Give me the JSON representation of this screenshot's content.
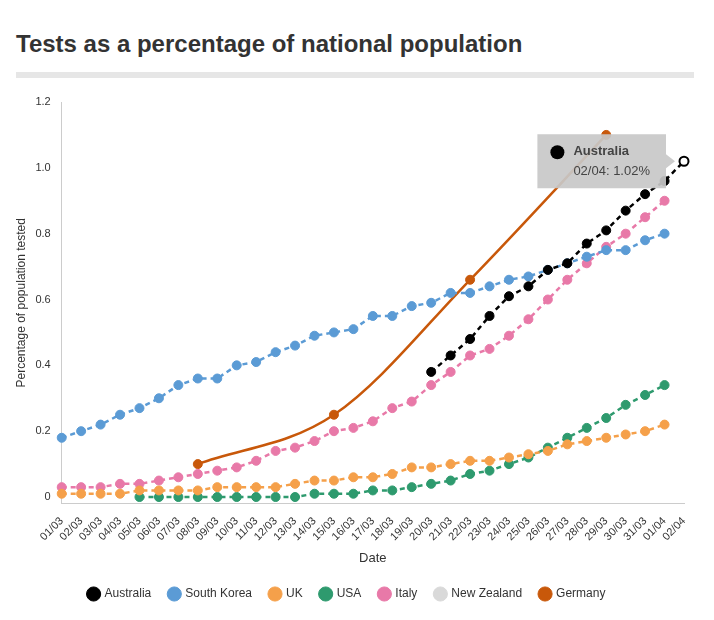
{
  "chart_data": {
    "type": "line",
    "title": "Tests as a percentage of national population",
    "x_label": "Date",
    "y_label": "Percentage of population tested",
    "categories": [
      "01/03",
      "02/03",
      "03/03",
      "04/03",
      "05/03",
      "06/03",
      "07/03",
      "08/03",
      "09/03",
      "10/03",
      "11/03",
      "12/03",
      "13/03",
      "14/03",
      "15/03",
      "16/03",
      "17/03",
      "18/03",
      "19/03",
      "20/03",
      "21/03",
      "22/03",
      "23/03",
      "24/03",
      "25/03",
      "26/03",
      "27/03",
      "28/03",
      "29/03",
      "30/03",
      "31/03",
      "01/04",
      "02/04"
    ],
    "ylim": [
      -0.02,
      1.2
    ],
    "yticks": [
      0,
      0.2,
      0.4,
      0.6,
      0.8,
      {
        "value": 1,
        "label": "1.0"
      },
      1.2
    ],
    "grid": false,
    "legend": "bottom",
    "marker": "circle",
    "series": [
      {
        "name": "Australia",
        "color": "#000000",
        "line_style": "dashed",
        "values": [
          null,
          null,
          null,
          null,
          null,
          null,
          null,
          null,
          null,
          null,
          null,
          null,
          null,
          null,
          null,
          null,
          null,
          null,
          null,
          0.38,
          0.43,
          0.48,
          0.55,
          0.61,
          0.64,
          0.69,
          0.71,
          0.77,
          0.81,
          0.87,
          0.92,
          0.96,
          1.02
        ]
      },
      {
        "name": "South Korea",
        "color": "#5b9bd5",
        "line_style": "dashed",
        "values": [
          0.18,
          0.2,
          0.22,
          0.25,
          0.27,
          0.3,
          0.34,
          0.36,
          0.36,
          0.4,
          0.41,
          0.44,
          0.46,
          0.49,
          0.5,
          0.51,
          0.55,
          0.55,
          0.58,
          0.59,
          0.62,
          0.62,
          0.64,
          0.66,
          0.67,
          0.69,
          0.71,
          0.73,
          0.75,
          0.75,
          0.78,
          0.8,
          null
        ]
      },
      {
        "name": "UK",
        "color": "#f5a04a",
        "line_style": "dashed",
        "values": [
          0.01,
          0.01,
          0.01,
          0.01,
          0.02,
          0.02,
          0.02,
          0.02,
          0.03,
          0.03,
          0.03,
          0.03,
          0.04,
          0.05,
          0.05,
          0.06,
          0.06,
          0.07,
          0.09,
          0.09,
          0.1,
          0.11,
          0.11,
          0.12,
          0.13,
          0.14,
          0.16,
          0.17,
          0.18,
          0.19,
          0.2,
          0.22,
          null
        ]
      },
      {
        "name": "USA",
        "color": "#2e9a6e",
        "line_style": "dashed",
        "values": [
          null,
          null,
          null,
          null,
          0,
          0,
          0,
          0,
          0,
          0,
          0,
          0,
          0,
          0.01,
          0.01,
          0.01,
          0.02,
          0.02,
          0.03,
          0.04,
          0.05,
          0.07,
          0.08,
          0.1,
          0.12,
          0.15,
          0.18,
          0.21,
          0.24,
          0.28,
          0.31,
          0.34,
          null
        ]
      },
      {
        "name": "Italy",
        "color": "#e879a8",
        "line_style": "dashed",
        "values": [
          0.03,
          0.03,
          0.03,
          0.04,
          0.04,
          0.05,
          0.06,
          0.07,
          0.08,
          0.09,
          0.11,
          0.14,
          0.15,
          0.17,
          0.2,
          0.21,
          0.23,
          0.27,
          0.29,
          0.34,
          0.38,
          0.43,
          0.45,
          0.49,
          0.54,
          0.6,
          0.66,
          0.71,
          0.76,
          0.8,
          0.85,
          0.9,
          null
        ]
      },
      {
        "name": "New Zealand",
        "color": "#d9d9d9",
        "line_style": "dashed",
        "values": [
          null,
          null,
          null,
          null,
          null,
          null,
          null,
          null,
          null,
          null,
          null,
          null,
          null,
          null,
          null,
          null,
          null,
          null,
          null,
          null,
          null,
          null,
          null,
          null,
          null,
          null,
          null,
          null,
          null,
          null,
          null,
          null,
          null
        ]
      },
      {
        "name": "Germany",
        "color": "#c8580a",
        "line_style": "solid",
        "values": [
          null,
          null,
          null,
          null,
          null,
          null,
          null,
          0.1,
          null,
          null,
          null,
          null,
          null,
          null,
          0.25,
          null,
          null,
          null,
          null,
          null,
          null,
          0.66,
          null,
          null,
          null,
          null,
          null,
          null,
          1.1,
          null,
          null,
          null,
          null
        ]
      }
    ],
    "annotations": [
      {
        "series": "Australia",
        "x": "02/04",
        "label": "02/04: 1.02%"
      }
    ]
  }
}
